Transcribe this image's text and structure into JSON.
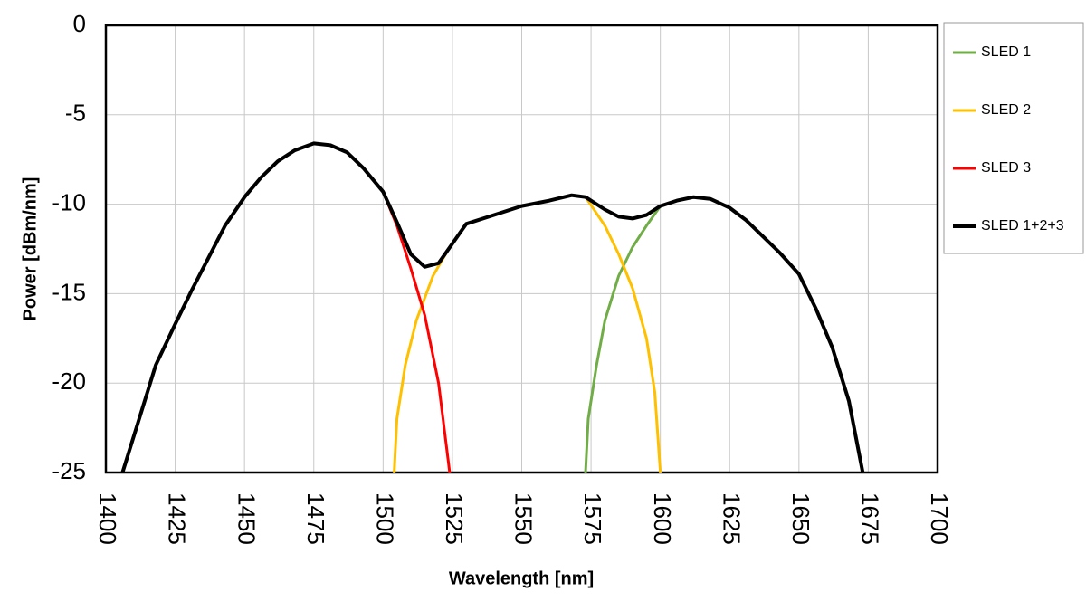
{
  "chart_data": {
    "type": "line",
    "x_label": "Wavelength [nm]",
    "y_label": "Power [dBm/nm]",
    "xlim": [
      1400,
      1700
    ],
    "xticks": [
      1400,
      1425,
      1450,
      1475,
      1500,
      1525,
      1550,
      1575,
      1600,
      1625,
      1650,
      1675,
      1700
    ],
    "ylim": [
      -25,
      0
    ],
    "yticks": [
      0,
      -5,
      -10,
      -15,
      -20,
      -25
    ],
    "grid": true,
    "legend": "right",
    "series": [
      {
        "name": "SLED 1",
        "color": "#70ad47",
        "x": [
          1573,
          1574,
          1577,
          1580,
          1585,
          1590,
          1595,
          1600,
          1606,
          1612,
          1618,
          1625,
          1631,
          1637,
          1643,
          1650,
          1656,
          1662,
          1668,
          1673
        ],
        "values": [
          -25,
          -22,
          -19,
          -16.5,
          -14,
          -12.4,
          -11.2,
          -10.1,
          -9.8,
          -9.6,
          -9.7,
          -10.2,
          -10.9,
          -11.8,
          -12.7,
          -13.9,
          -15.8,
          -18,
          -21,
          -25
        ]
      },
      {
        "name": "SLED 2",
        "color": "#ffc000",
        "x": [
          1504,
          1505,
          1508,
          1512,
          1518,
          1524,
          1530,
          1540,
          1550,
          1560,
          1568,
          1573,
          1580,
          1585,
          1590,
          1595,
          1598,
          1600
        ],
        "values": [
          -25,
          -22,
          -19,
          -16.5,
          -14,
          -12.4,
          -11.1,
          -10.6,
          -10.1,
          -9.8,
          -9.5,
          -9.6,
          -11.2,
          -12.8,
          -14.7,
          -17.5,
          -20.5,
          -25
        ]
      },
      {
        "name": "SLED 3",
        "color": "#ff0000",
        "x": [
          1481,
          1487,
          1493,
          1500,
          1505,
          1510,
          1515,
          1520,
          1524
        ],
        "values": [
          -6.7,
          -7.1,
          -8,
          -9.3,
          -11.2,
          -13.6,
          -16.2,
          -20,
          -25
        ]
      },
      {
        "name": "SLED 1+2+3",
        "color": "#000000",
        "x": [
          1406,
          1412,
          1418,
          1425,
          1431,
          1437,
          1443,
          1450,
          1456,
          1462,
          1468,
          1475,
          1481,
          1487,
          1493,
          1500,
          1505,
          1510,
          1515,
          1520,
          1525,
          1530,
          1540,
          1550,
          1560,
          1568,
          1573,
          1580,
          1585,
          1590,
          1595,
          1600,
          1606,
          1612,
          1618,
          1625,
          1631,
          1637,
          1643,
          1650,
          1656,
          1662,
          1668,
          1673
        ],
        "values": [
          -25,
          -22,
          -19,
          -16.7,
          -14.8,
          -13,
          -11.2,
          -9.6,
          -8.5,
          -7.6,
          -7,
          -6.6,
          -6.7,
          -7.1,
          -8,
          -9.3,
          -11,
          -12.8,
          -13.5,
          -13.3,
          -12.2,
          -11.1,
          -10.6,
          -10.1,
          -9.8,
          -9.5,
          -9.6,
          -10.3,
          -10.7,
          -10.8,
          -10.6,
          -10.1,
          -9.8,
          -9.6,
          -9.7,
          -10.2,
          -10.9,
          -11.8,
          -12.7,
          -13.9,
          -15.8,
          -18,
          -21,
          -25
        ]
      }
    ]
  }
}
